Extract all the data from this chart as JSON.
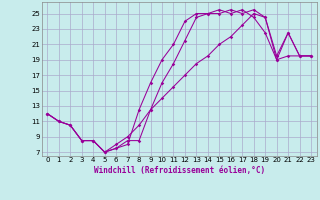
{
  "bg_color": "#c8ecec",
  "grid_color": "#aaaacc",
  "line_color": "#990099",
  "xlabel": "Windchill (Refroidissement éolien,°C)",
  "xlim": [
    -0.5,
    23.5
  ],
  "ylim": [
    6.5,
    26.5
  ],
  "xticks": [
    0,
    1,
    2,
    3,
    4,
    5,
    6,
    7,
    8,
    9,
    10,
    11,
    12,
    13,
    14,
    15,
    16,
    17,
    18,
    19,
    20,
    21,
    22,
    23
  ],
  "yticks": [
    7,
    9,
    11,
    13,
    15,
    17,
    19,
    21,
    23,
    25
  ],
  "line1_x": [
    0,
    1,
    2,
    3,
    4,
    5,
    6,
    7,
    8,
    9,
    10,
    11,
    12,
    13,
    14,
    15,
    16,
    17,
    18,
    19,
    20,
    21,
    22,
    23
  ],
  "line1_y": [
    12.0,
    11.0,
    10.5,
    8.5,
    8.5,
    7.0,
    7.5,
    8.0,
    12.5,
    16.0,
    19.0,
    21.0,
    24.0,
    25.0,
    25.0,
    25.5,
    25.0,
    25.5,
    24.5,
    22.5,
    19.0,
    19.5,
    19.5,
    19.5
  ],
  "line2_x": [
    0,
    1,
    2,
    3,
    4,
    5,
    6,
    7,
    8,
    9,
    10,
    11,
    12,
    13,
    14,
    15,
    16,
    17,
    18,
    19,
    20,
    21,
    22,
    23
  ],
  "line2_y": [
    12.0,
    11.0,
    10.5,
    8.5,
    8.5,
    7.0,
    7.5,
    8.5,
    8.5,
    12.5,
    16.0,
    18.5,
    21.5,
    24.5,
    25.0,
    25.0,
    25.5,
    25.0,
    25.5,
    24.5,
    19.0,
    22.5,
    19.5,
    19.5
  ],
  "line3_x": [
    0,
    1,
    2,
    3,
    4,
    5,
    6,
    7,
    8,
    9,
    10,
    11,
    12,
    13,
    14,
    15,
    16,
    17,
    18,
    19,
    20,
    21,
    22,
    23
  ],
  "line3_y": [
    12.0,
    11.0,
    10.5,
    8.5,
    8.5,
    7.0,
    8.0,
    9.0,
    10.5,
    12.5,
    14.0,
    15.5,
    17.0,
    18.5,
    19.5,
    21.0,
    22.0,
    23.5,
    25.0,
    24.5,
    19.5,
    22.5,
    19.5,
    19.5
  ],
  "marker": "D",
  "markersize": 1.8,
  "linewidth": 0.75,
  "xlabel_fontsize": 5.5,
  "tick_fontsize": 5
}
